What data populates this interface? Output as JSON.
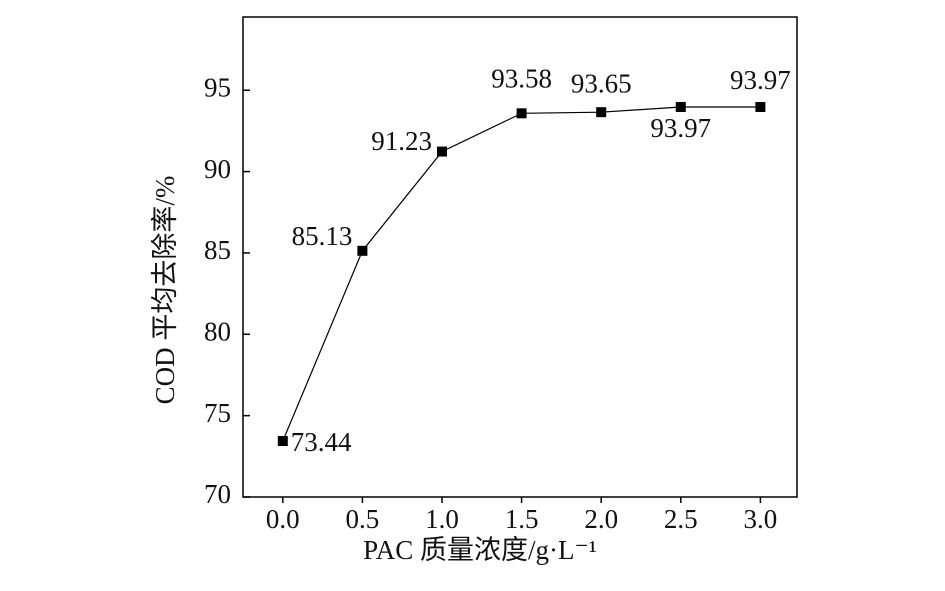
{
  "chart_data": {
    "type": "line",
    "x_label": "PAC 质量浓度/g·L⁻¹",
    "y_label": "COD 平均去除率/%",
    "x": [
      0,
      0.5,
      1.0,
      1.5,
      2.0,
      2.5,
      3.0
    ],
    "series": [
      {
        "color": "#000000",
        "values": [
          73.44,
          85.13,
          91.23,
          93.58,
          93.65,
          93.97,
          93.97
        ]
      }
    ],
    "xlim": [
      -0.25,
      3.23
    ],
    "xticks": [
      {
        "value": 0,
        "label": "0.0"
      },
      {
        "value": 0.5,
        "label": "0.5"
      },
      {
        "value": 1.0,
        "label": "1.0"
      },
      {
        "value": 1.5,
        "label": "1.5"
      },
      {
        "value": 2.0,
        "label": "2.0"
      },
      {
        "value": 2.5,
        "label": "2.5"
      },
      {
        "value": 3.0,
        "label": "3.0"
      }
    ],
    "ylim": [
      70,
      99.5
    ],
    "yticks": [
      70,
      75,
      80,
      85,
      90,
      95
    ],
    "grid": false
  }
}
